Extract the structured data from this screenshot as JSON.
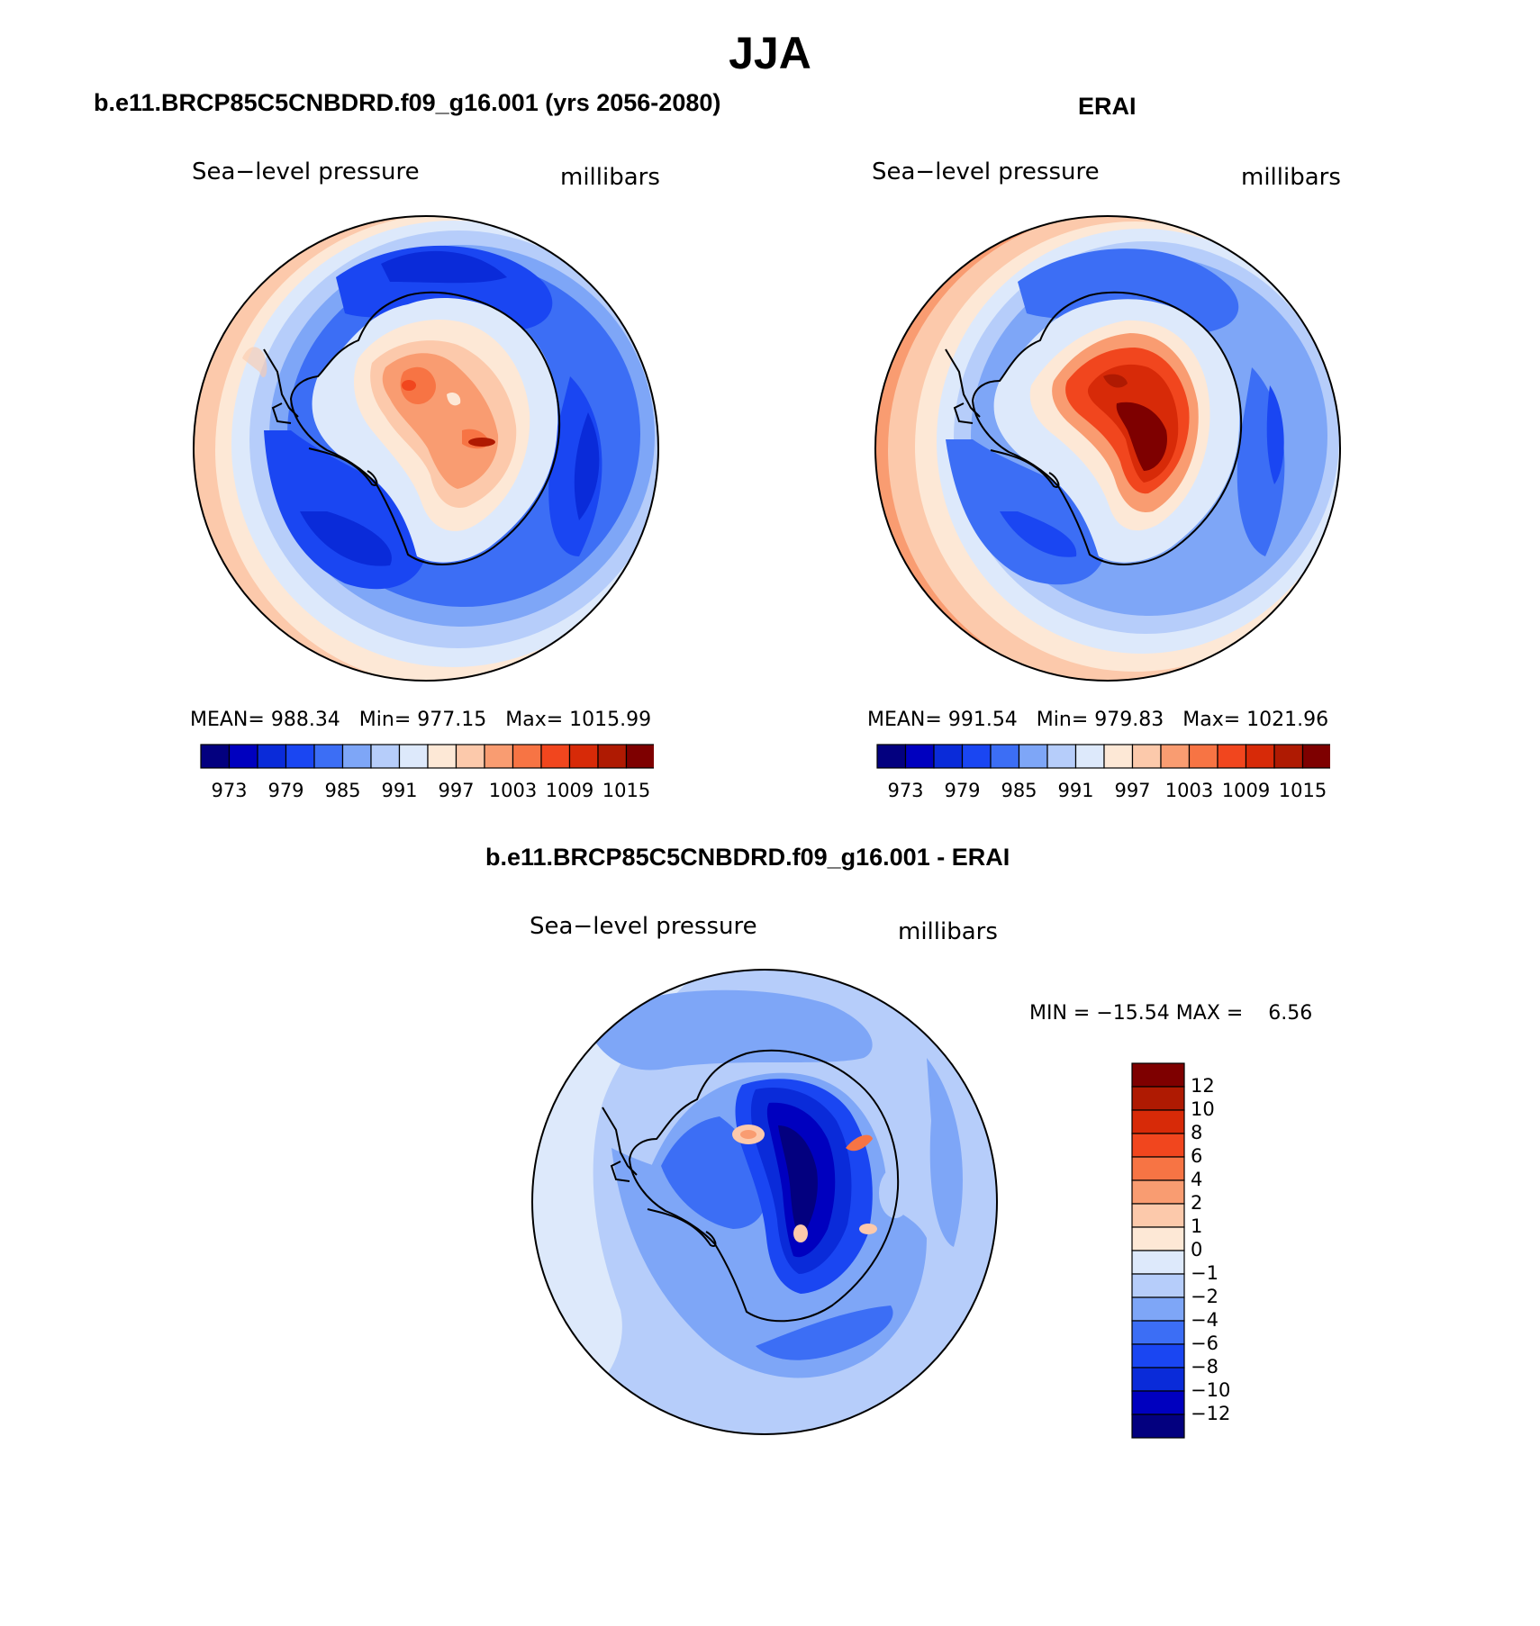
{
  "title": "JJA",
  "panels": [
    {
      "id": "model",
      "heading": "b.e11.BRCP85C5CNBDRD.f09_g16.001 (yrs 2056-2080)",
      "variable": "Sea−level pressure",
      "units": "millibars",
      "stats": {
        "mean_label": "MEAN=",
        "mean": "988.34",
        "min_label": "Min=",
        "min": "977.15",
        "max_label": "Max=",
        "max": "1015.99"
      }
    },
    {
      "id": "obs",
      "heading": "ERAI",
      "variable": "Sea−level pressure",
      "units": "millibars",
      "stats": {
        "mean_label": "MEAN=",
        "mean": "991.54",
        "min_label": "Min=",
        "min": "979.83",
        "max_label": "Max=",
        "max": "1021.96"
      }
    },
    {
      "id": "diff",
      "heading": "b.e11.BRCP85C5CNBDRD.f09_g16.001 - ERAI",
      "variable": "Sea−level pressure",
      "units": "millibars",
      "stats": {
        "min_label": "MIN =",
        "min": "−15.54",
        "max_label": "MAX =",
        "max": "6.56"
      }
    }
  ],
  "colorbar_abs": {
    "colors": [
      "#03007f",
      "#0000bf",
      "#0a2bd9",
      "#1a46f2",
      "#3c6ef5",
      "#7ea6f7",
      "#b6cdfa",
      "#dde9fb",
      "#fde8d6",
      "#fcc9ab",
      "#f99c71",
      "#f77444",
      "#f1461e",
      "#d72a08",
      "#af1a02",
      "#7e0000"
    ],
    "tick_labels": [
      "973",
      "979",
      "985",
      "991",
      "997",
      "1003",
      "1009",
      "1015"
    ]
  },
  "colorbar_diff": {
    "colors": [
      "#03007f",
      "#0000bf",
      "#0a2bd9",
      "#1a46f2",
      "#3c6ef5",
      "#7ea6f7",
      "#b6cdfa",
      "#dde9fb",
      "#fde8d6",
      "#fcc9ab",
      "#f99c71",
      "#f77444",
      "#f1461e",
      "#d72a08",
      "#af1a02",
      "#7e0000"
    ],
    "tick_labels": [
      "12",
      "10",
      "8",
      "6",
      "4",
      "2",
      "1",
      "0",
      "−1",
      "−2",
      "−4",
      "−6",
      "−8",
      "−10",
      "−12"
    ]
  }
}
